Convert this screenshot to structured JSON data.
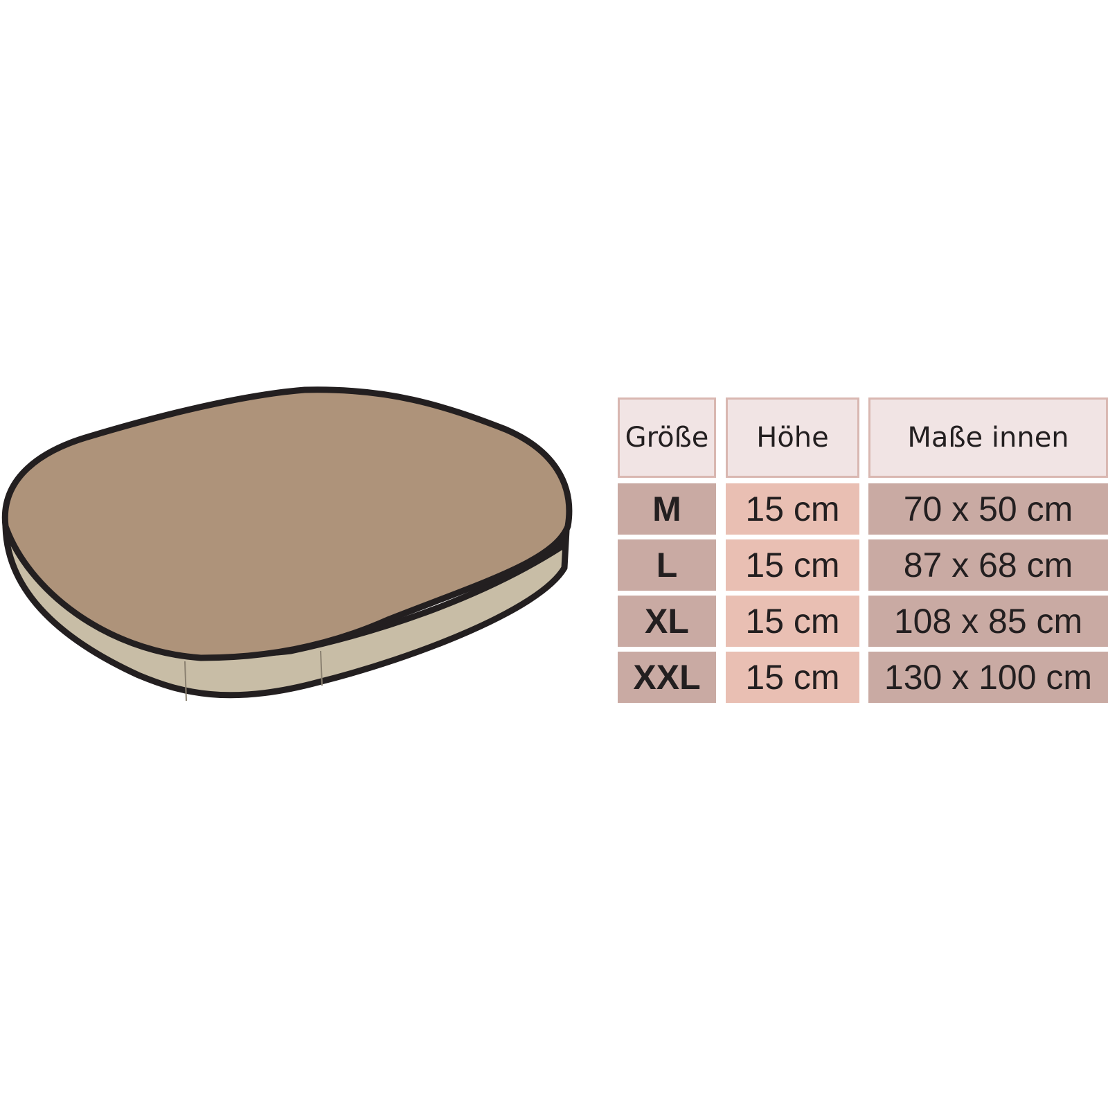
{
  "table": {
    "header": [
      "Größe",
      "Höhe",
      "Maße innen"
    ],
    "rows": [
      [
        "M",
        "15 cm",
        "70 x 50 cm"
      ],
      [
        "L",
        "15 cm",
        "87 x 68 cm"
      ],
      [
        "XL",
        "15 cm",
        "108 x 85 cm"
      ],
      [
        "XXL",
        "15 cm",
        "130 x 100 cm"
      ]
    ]
  }
}
